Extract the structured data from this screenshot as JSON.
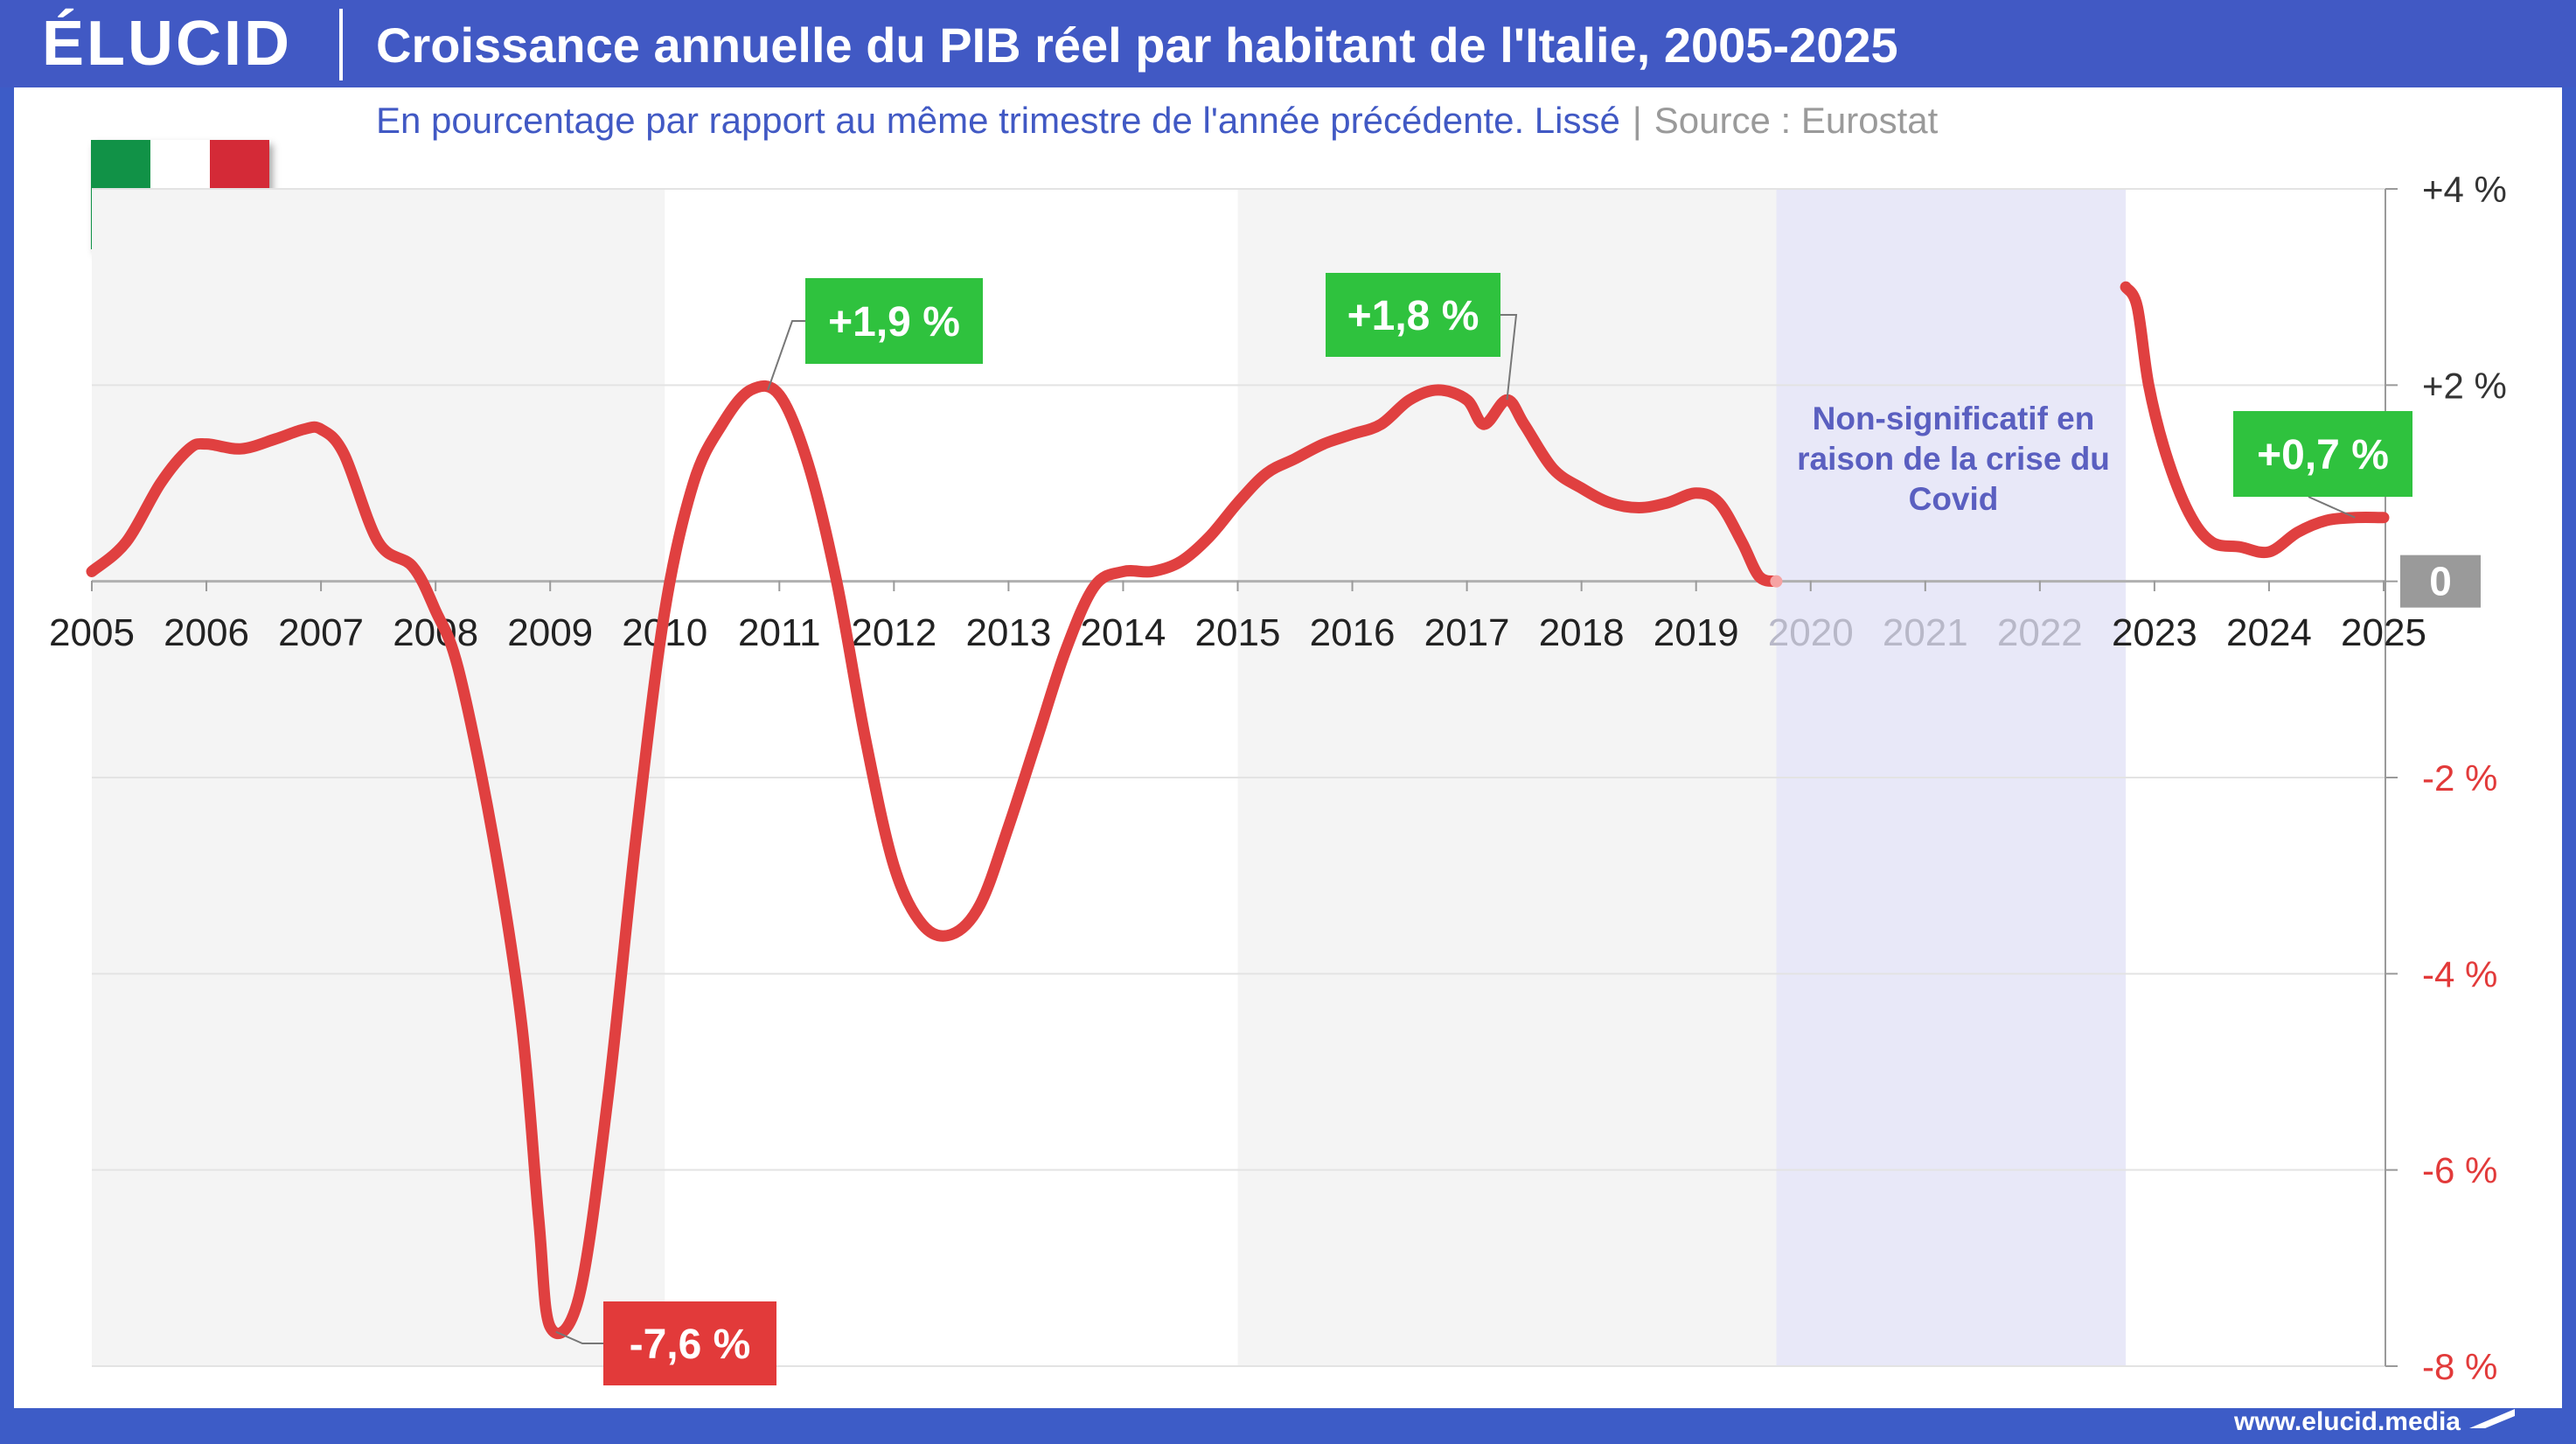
{
  "header": {
    "logo": "ÉLUCID",
    "title": "Croissance annuelle du PIB réel par habitant de l'Italie, 2005-2025"
  },
  "subtitle": {
    "text": "En pourcentage par rapport au même trimestre de l'année précédente. Lissé",
    "separator": "|",
    "source": "Source : Eurostat"
  },
  "covid_note": "Non-significatif en raison de la crise du Covid",
  "footer": {
    "url": "www.elucid.media"
  },
  "colors": {
    "header": "#4159c4",
    "line": "#e04040",
    "positive_label": "#2fc23e",
    "negative_label": "#e23a3a",
    "covid_band": "#e8e8f8",
    "alt_band": "#f4f4f4",
    "negative_axis": "#e23a3a"
  },
  "chart_data": {
    "type": "line",
    "title": "Croissance annuelle du PIB réel par habitant de l'Italie, 2005-2025",
    "subtitle": "En pourcentage par rapport au même trimestre de l'année précédente. Lissé",
    "xlim": [
      2005,
      2025
    ],
    "ylim": [
      -8,
      4
    ],
    "x_ticks": [
      "2005",
      "2006",
      "2007",
      "2008",
      "2009",
      "2010",
      "2011",
      "2012",
      "2013",
      "2014",
      "2015",
      "2016",
      "2017",
      "2018",
      "2019",
      "2020",
      "2021",
      "2022",
      "2023",
      "2024",
      "2025"
    ],
    "y_ticks": [
      {
        "value": 4,
        "label": "+4 %"
      },
      {
        "value": 2,
        "label": "+2 %"
      },
      {
        "value": 0,
        "label": "0"
      },
      {
        "value": -2,
        "label": "-2 %"
      },
      {
        "value": -4,
        "label": "-4 %"
      },
      {
        "value": -6,
        "label": "-6 %"
      },
      {
        "value": -8,
        "label": "-8 %"
      }
    ],
    "axis_position": "right",
    "grid": true,
    "shaded_bands": [
      [
        2005,
        2010
      ],
      [
        2015,
        2019.7
      ]
    ],
    "covid_band": [
      2019.7,
      2022.75
    ],
    "series": [
      {
        "segments": [
          [
            [
              2005.0,
              0.1
            ],
            [
              2005.3,
              0.4
            ],
            [
              2005.6,
              1.0
            ],
            [
              2005.85,
              1.35
            ],
            [
              2006.0,
              1.4
            ],
            [
              2006.3,
              1.35
            ],
            [
              2006.6,
              1.45
            ],
            [
              2006.85,
              1.55
            ],
            [
              2007.0,
              1.55
            ],
            [
              2007.2,
              1.3
            ],
            [
              2007.5,
              0.4
            ],
            [
              2007.8,
              0.15
            ],
            [
              2008.0,
              -0.3
            ],
            [
              2008.2,
              -0.9
            ],
            [
              2008.5,
              -2.6
            ],
            [
              2008.75,
              -4.5
            ],
            [
              2008.9,
              -6.5
            ],
            [
              2009.0,
              -7.6
            ],
            [
              2009.25,
              -7.3
            ],
            [
              2009.5,
              -5.3
            ],
            [
              2009.75,
              -2.6
            ],
            [
              2010.0,
              -0.3
            ],
            [
              2010.25,
              1.0
            ],
            [
              2010.5,
              1.6
            ],
            [
              2010.75,
              1.95
            ],
            [
              2011.0,
              1.9
            ],
            [
              2011.25,
              1.2
            ],
            [
              2011.5,
              0.0
            ],
            [
              2011.75,
              -1.6
            ],
            [
              2012.0,
              -2.9
            ],
            [
              2012.25,
              -3.5
            ],
            [
              2012.5,
              -3.6
            ],
            [
              2012.75,
              -3.3
            ],
            [
              2013.0,
              -2.5
            ],
            [
              2013.25,
              -1.6
            ],
            [
              2013.5,
              -0.7
            ],
            [
              2013.75,
              -0.05
            ],
            [
              2014.0,
              0.1
            ],
            [
              2014.25,
              0.1
            ],
            [
              2014.5,
              0.2
            ],
            [
              2014.75,
              0.45
            ],
            [
              2015.0,
              0.8
            ],
            [
              2015.25,
              1.1
            ],
            [
              2015.5,
              1.25
            ],
            [
              2015.75,
              1.4
            ],
            [
              2016.0,
              1.5
            ],
            [
              2016.25,
              1.6
            ],
            [
              2016.5,
              1.85
            ],
            [
              2016.75,
              1.95
            ],
            [
              2017.0,
              1.85
            ],
            [
              2017.15,
              1.6
            ],
            [
              2017.35,
              1.85
            ],
            [
              2017.5,
              1.6
            ],
            [
              2017.75,
              1.15
            ],
            [
              2018.0,
              0.95
            ],
            [
              2018.25,
              0.8
            ],
            [
              2018.5,
              0.75
            ],
            [
              2018.75,
              0.8
            ],
            [
              2019.0,
              0.9
            ],
            [
              2019.2,
              0.8
            ],
            [
              2019.4,
              0.4
            ],
            [
              2019.55,
              0.05
            ],
            [
              2019.7,
              0.0
            ]
          ],
          [
            [
              2022.75,
              3.0
            ],
            [
              2022.85,
              2.8
            ],
            [
              2022.95,
              2.0
            ],
            [
              2023.1,
              1.3
            ],
            [
              2023.3,
              0.7
            ],
            [
              2023.5,
              0.4
            ],
            [
              2023.75,
              0.35
            ],
            [
              2024.0,
              0.3
            ],
            [
              2024.25,
              0.5
            ],
            [
              2024.5,
              0.62
            ],
            [
              2024.75,
              0.65
            ],
            [
              2025.0,
              0.65
            ]
          ]
        ]
      }
    ],
    "annotations": [
      {
        "label": "+1,9 %",
        "x": 2010.9,
        "y": 1.95,
        "kind": "positive"
      },
      {
        "label": "+1,8 %",
        "x": 2017.35,
        "y": 1.85,
        "kind": "positive"
      },
      {
        "label": "-7,6 %",
        "x": 2009.05,
        "y": -7.65,
        "kind": "negative"
      },
      {
        "label": "+0,7 %",
        "x": 2024.75,
        "y": 0.65,
        "kind": "positive"
      }
    ]
  }
}
